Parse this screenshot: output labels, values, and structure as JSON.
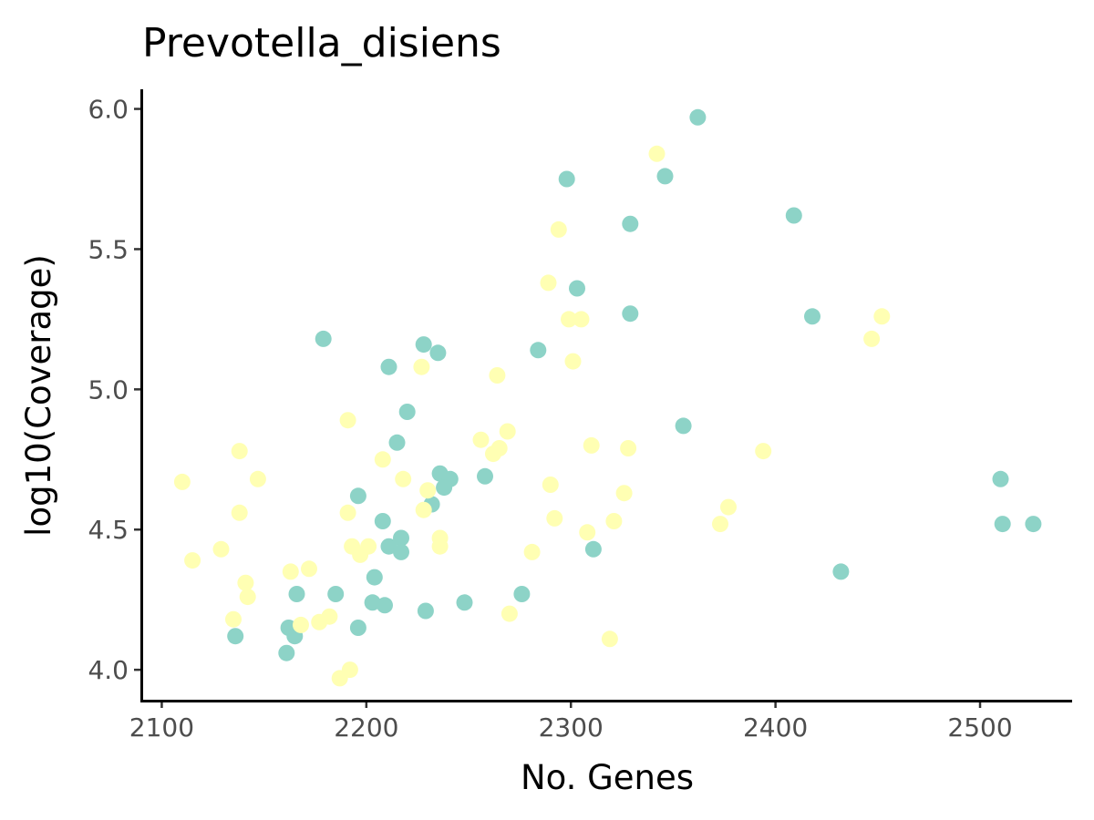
{
  "chart_data": {
    "type": "scatter",
    "title": "Prevotella_disiens",
    "xlabel": "No. Genes",
    "ylabel": "log10(Coverage)",
    "xlim": [
      2090,
      2545
    ],
    "ylim": [
      3.89,
      6.07
    ],
    "x_ticks": [
      2100,
      2200,
      2300,
      2400,
      2500
    ],
    "x_tick_labels": [
      "2100",
      "2200",
      "2300",
      "2400",
      "2500"
    ],
    "y_ticks": [
      4.0,
      4.5,
      5.0,
      5.5,
      6.0
    ],
    "y_tick_labels": [
      "4.0",
      "4.5",
      "5.0",
      "5.5",
      "6.0"
    ],
    "grid": false,
    "legend": "none",
    "series": [
      {
        "color": "#8dd3c7",
        "points": [
          [
            2362,
            5.97
          ],
          [
            2346,
            5.76
          ],
          [
            2298,
            5.75
          ],
          [
            2409,
            5.62
          ],
          [
            2329,
            5.59
          ],
          [
            2303,
            5.36
          ],
          [
            2329,
            5.27
          ],
          [
            2418,
            5.26
          ],
          [
            2179,
            5.18
          ],
          [
            2228,
            5.16
          ],
          [
            2284,
            5.14
          ],
          [
            2235,
            5.13
          ],
          [
            2211,
            5.08
          ],
          [
            2220,
            4.92
          ],
          [
            2355,
            4.87
          ],
          [
            2215,
            4.81
          ],
          [
            2236,
            4.7
          ],
          [
            2241,
            4.68
          ],
          [
            2258,
            4.69
          ],
          [
            2510,
            4.68
          ],
          [
            2238,
            4.65
          ],
          [
            2196,
            4.62
          ],
          [
            2232,
            4.59
          ],
          [
            2208,
            4.53
          ],
          [
            2511,
            4.52
          ],
          [
            2526,
            4.52
          ],
          [
            2217,
            4.47
          ],
          [
            2211,
            4.44
          ],
          [
            2217,
            4.42
          ],
          [
            2311,
            4.43
          ],
          [
            2432,
            4.35
          ],
          [
            2204,
            4.33
          ],
          [
            2185,
            4.27
          ],
          [
            2166,
            4.27
          ],
          [
            2276,
            4.27
          ],
          [
            2203,
            4.24
          ],
          [
            2209,
            4.23
          ],
          [
            2248,
            4.24
          ],
          [
            2229,
            4.21
          ],
          [
            2162,
            4.15
          ],
          [
            2196,
            4.15
          ],
          [
            2165,
            4.12
          ],
          [
            2136,
            4.12
          ],
          [
            2161,
            4.06
          ]
        ]
      },
      {
        "color": "#ffffb3",
        "points": [
          [
            2342,
            5.84
          ],
          [
            2294,
            5.57
          ],
          [
            2289,
            5.38
          ],
          [
            2299,
            5.25
          ],
          [
            2305,
            5.25
          ],
          [
            2452,
            5.26
          ],
          [
            2447,
            5.18
          ],
          [
            2301,
            5.1
          ],
          [
            2227,
            5.08
          ],
          [
            2264,
            5.05
          ],
          [
            2191,
            4.89
          ],
          [
            2269,
            4.85
          ],
          [
            2256,
            4.82
          ],
          [
            2265,
            4.79
          ],
          [
            2310,
            4.8
          ],
          [
            2328,
            4.79
          ],
          [
            2394,
            4.78
          ],
          [
            2138,
            4.78
          ],
          [
            2262,
            4.77
          ],
          [
            2208,
            4.75
          ],
          [
            2218,
            4.68
          ],
          [
            2147,
            4.68
          ],
          [
            2110,
            4.67
          ],
          [
            2290,
            4.66
          ],
          [
            2230,
            4.64
          ],
          [
            2326,
            4.63
          ],
          [
            2228,
            4.57
          ],
          [
            2191,
            4.56
          ],
          [
            2138,
            4.56
          ],
          [
            2377,
            4.58
          ],
          [
            2292,
            4.54
          ],
          [
            2321,
            4.53
          ],
          [
            2373,
            4.52
          ],
          [
            2308,
            4.49
          ],
          [
            2236,
            4.47
          ],
          [
            2236,
            4.44
          ],
          [
            2193,
            4.44
          ],
          [
            2201,
            4.44
          ],
          [
            2129,
            4.43
          ],
          [
            2197,
            4.41
          ],
          [
            2281,
            4.42
          ],
          [
            2115,
            4.39
          ],
          [
            2172,
            4.36
          ],
          [
            2163,
            4.35
          ],
          [
            2141,
            4.31
          ],
          [
            2142,
            4.26
          ],
          [
            2182,
            4.19
          ],
          [
            2177,
            4.17
          ],
          [
            2168,
            4.16
          ],
          [
            2135,
            4.18
          ],
          [
            2270,
            4.2
          ],
          [
            2319,
            4.11
          ],
          [
            2192,
            4.0
          ],
          [
            2187,
            3.97
          ]
        ]
      }
    ]
  }
}
